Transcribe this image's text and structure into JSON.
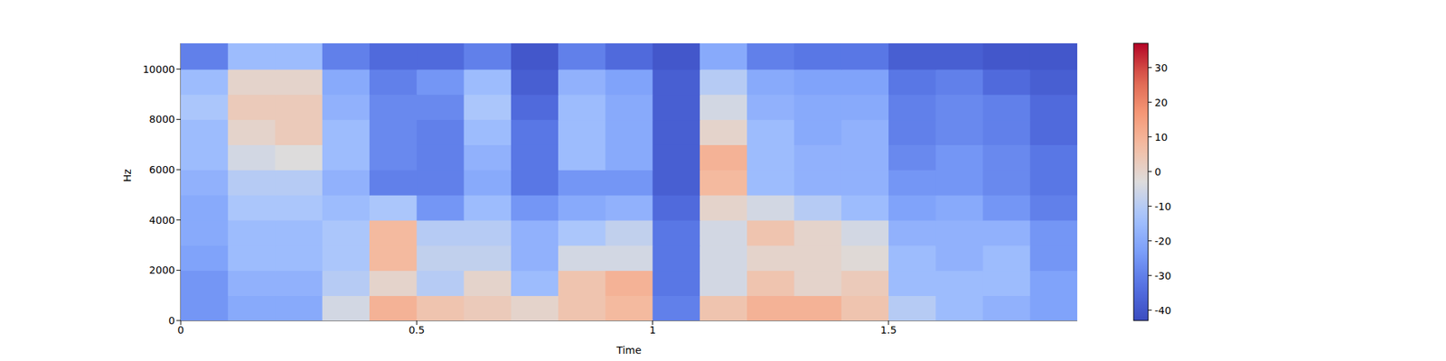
{
  "chart_data": {
    "type": "heatmap",
    "x_label": "Time",
    "y_label": "Hz",
    "xlim": [
      0,
      1.9
    ],
    "xticks": [
      0,
      0.5,
      1,
      1.5
    ],
    "ylim": [
      0,
      11025
    ],
    "yticks": [
      0,
      2000,
      4000,
      6000,
      8000,
      10000
    ],
    "grid": false,
    "time_bins": [
      0,
      0.1,
      0.2,
      0.3,
      0.4,
      0.5,
      0.6,
      0.7,
      0.8,
      0.9,
      1.0,
      1.1,
      1.2,
      1.3,
      1.4,
      1.5,
      1.6,
      1.7,
      1.8,
      1.9
    ],
    "freq_bins": [
      0,
      1000,
      2000,
      3000,
      4000,
      5000,
      6000,
      7000,
      8000,
      9000,
      10000,
      11025
    ],
    "cells": [
      [
        -25,
        -20,
        -20,
        -5,
        10,
        5,
        3,
        0,
        5,
        8,
        -30,
        5,
        10,
        10,
        5,
        -10,
        -15,
        -18,
        -22
      ],
      [
        -25,
        -18,
        -18,
        -10,
        0,
        -10,
        0,
        -15,
        5,
        10,
        -32,
        -5,
        5,
        0,
        3,
        -15,
        -15,
        -15,
        -22
      ],
      [
        -22,
        -15,
        -15,
        -12,
        8,
        -8,
        -8,
        -18,
        -5,
        -5,
        -32,
        -5,
        0,
        0,
        -2,
        -15,
        -18,
        -15,
        -25
      ],
      [
        -20,
        -15,
        -15,
        -12,
        8,
        -10,
        -10,
        -18,
        -12,
        -8,
        -32,
        -5,
        5,
        0,
        -5,
        -18,
        -18,
        -18,
        -25
      ],
      [
        -20,
        -12,
        -12,
        -15,
        -12,
        -25,
        -15,
        -25,
        -20,
        -18,
        -35,
        0,
        -5,
        -10,
        -15,
        -22,
        -20,
        -25,
        -30
      ],
      [
        -18,
        -10,
        -10,
        -18,
        -30,
        -30,
        -20,
        -32,
        -25,
        -25,
        -38,
        8,
        -15,
        -18,
        -18,
        -25,
        -25,
        -28,
        -32
      ],
      [
        -15,
        -5,
        -3,
        -15,
        -28,
        -30,
        -18,
        -32,
        -15,
        -20,
        -38,
        10,
        -15,
        -18,
        -18,
        -28,
        -25,
        -28,
        -32
      ],
      [
        -15,
        0,
        3,
        -15,
        -28,
        -30,
        -15,
        -32,
        -15,
        -20,
        -38,
        0,
        -15,
        -20,
        -18,
        -30,
        -28,
        -30,
        -35
      ],
      [
        -12,
        3,
        3,
        -18,
        -28,
        -28,
        -12,
        -35,
        -15,
        -20,
        -38,
        -5,
        -18,
        -20,
        -20,
        -30,
        -28,
        -30,
        -35
      ],
      [
        -15,
        0,
        0,
        -20,
        -30,
        -25,
        -15,
        -38,
        -18,
        -22,
        -38,
        -10,
        -20,
        -22,
        -22,
        -32,
        -30,
        -35,
        -38
      ],
      [
        -30,
        -15,
        -15,
        -30,
        -35,
        -35,
        -30,
        -40,
        -30,
        -35,
        -40,
        -20,
        -30,
        -32,
        -32,
        -38,
        -38,
        -40,
        -40
      ]
    ],
    "colorbar_range": [
      -43,
      37
    ],
    "colorbar_ticks": [
      -40,
      -30,
      -20,
      -10,
      0,
      10,
      20,
      30
    ]
  }
}
